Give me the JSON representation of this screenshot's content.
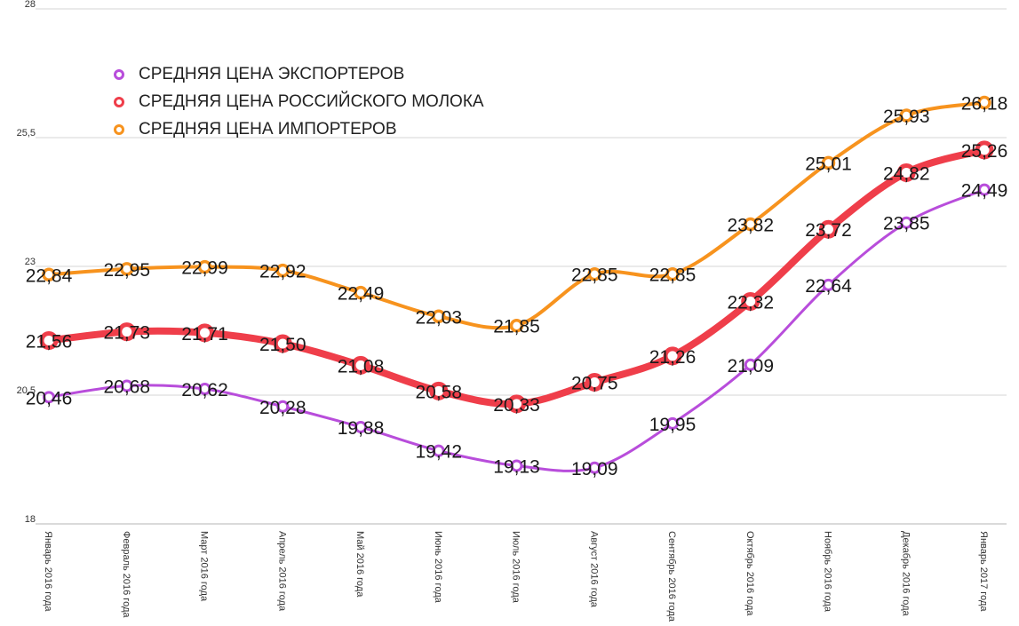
{
  "chart_data": {
    "type": "line",
    "title": "",
    "xlabel": "",
    "ylabel": "",
    "ylim": [
      18,
      28
    ],
    "yticks": [
      "18",
      "20,5",
      "23",
      "25,5",
      "28"
    ],
    "grid": true,
    "legend_position": "top-left",
    "categories": [
      "Январь 2016 года",
      "Февраль 2016 года",
      "Март 2016 года",
      "Апрель 2016 года",
      "Май 2016 года",
      "Июнь 2016 года",
      "Июль 2016 года",
      "Август 2016 года",
      "Сентябрь 2016 года",
      "Октябрь 2016 года",
      "Ноябрь 2016 года",
      "Декабрь 2016 года",
      "Январь 2017 года"
    ],
    "series": [
      {
        "name": "СРЕДНЯЯ ЦЕНА ЭКСПОРТЕРОВ",
        "color": "#b84ddb",
        "values": [
          20.46,
          20.68,
          20.62,
          20.28,
          19.88,
          19.42,
          19.13,
          19.09,
          19.95,
          21.09,
          22.64,
          23.85,
          24.49
        ],
        "labels": [
          "20,46",
          "20,68",
          "20,62",
          "20,28",
          "19,88",
          "19,42",
          "19,13",
          "19,09",
          "19,95",
          "21,09",
          "22,64",
          "23,85",
          "24,49"
        ]
      },
      {
        "name": "СРЕДНЯЯ ЦЕНА РОССИЙСКОГО МОЛОКА",
        "color": "#ef3e4a",
        "values": [
          21.56,
          21.73,
          21.71,
          21.5,
          21.08,
          20.58,
          20.33,
          20.75,
          21.26,
          22.32,
          23.72,
          24.82,
          25.26
        ],
        "labels": [
          "21,56",
          "21,73",
          "21,71",
          "21,50",
          "21,08",
          "20,58",
          "20,33",
          "20,75",
          "21,26",
          "22,32",
          "23,72",
          "24,82",
          "25,26"
        ]
      },
      {
        "name": "СРЕДНЯЯ ЦЕНА ИМПОРТЕРОВ",
        "color": "#f7931e",
        "values": [
          22.84,
          22.95,
          22.99,
          22.92,
          22.49,
          22.03,
          21.85,
          22.85,
          22.85,
          23.82,
          25.01,
          25.93,
          26.18
        ],
        "labels": [
          "22,84",
          "22,95",
          "22,99",
          "22,92",
          "22,49",
          "22,03",
          "21,85",
          "22,85",
          "22,85",
          "23,82",
          "25,01",
          "25,93",
          "26,18"
        ]
      }
    ]
  }
}
